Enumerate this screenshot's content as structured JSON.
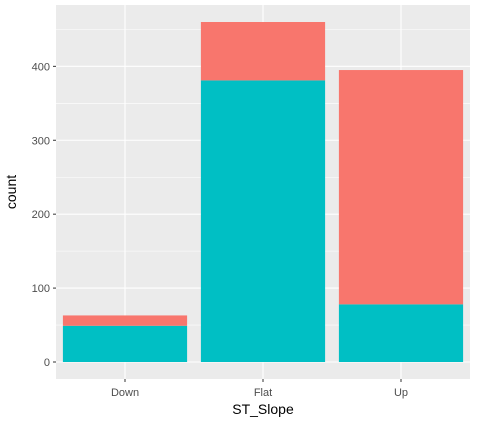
{
  "chart_data": {
    "type": "bar",
    "stacked": true,
    "categories": [
      "Down",
      "Flat",
      "Up"
    ],
    "series": [
      {
        "color": "#00BFC4",
        "values": [
          49,
          381,
          78
        ]
      },
      {
        "color": "#F8766D",
        "values": [
          14,
          79,
          317
        ]
      }
    ],
    "xlabel": "ST_Slope",
    "ylabel": "count",
    "yticks": [
      0,
      100,
      200,
      300,
      400
    ],
    "ylim": [
      -23,
      483
    ],
    "grid": true,
    "legend": "none",
    "panel_background": "#EBEBEB",
    "grid_color": "#FFFFFF"
  }
}
